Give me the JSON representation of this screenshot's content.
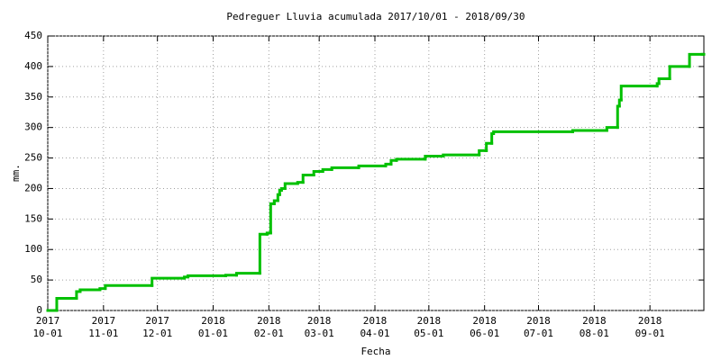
{
  "chart_data": {
    "type": "step",
    "title": "Pedreguer Lluvia acumulada 2017/10/01 - 2018/09/30",
    "xlabel": "Fecha",
    "ylabel": "mm.",
    "color": "#00c000",
    "grid": true,
    "xlim": [
      "2017-10-01",
      "2018-09-30"
    ],
    "ylim": [
      0,
      450
    ],
    "yticks": [
      0,
      50,
      100,
      150,
      200,
      250,
      300,
      350,
      400,
      450
    ],
    "xticks": [
      {
        "value": "2017-10-01",
        "label": [
          "2017",
          "10-01"
        ]
      },
      {
        "value": "2017-11-01",
        "label": [
          "2017",
          "11-01"
        ]
      },
      {
        "value": "2017-12-01",
        "label": [
          "2017",
          "12-01"
        ]
      },
      {
        "value": "2018-01-01",
        "label": [
          "2018",
          "01-01"
        ]
      },
      {
        "value": "2018-02-01",
        "label": [
          "2018",
          "02-01"
        ]
      },
      {
        "value": "2018-03-01",
        "label": [
          "2018",
          "03-01"
        ]
      },
      {
        "value": "2018-04-01",
        "label": [
          "2018",
          "04-01"
        ]
      },
      {
        "value": "2018-05-01",
        "label": [
          "2018",
          "05-01"
        ]
      },
      {
        "value": "2018-06-01",
        "label": [
          "2018",
          "06-01"
        ]
      },
      {
        "value": "2018-07-01",
        "label": [
          "2018",
          "07-01"
        ]
      },
      {
        "value": "2018-08-01",
        "label": [
          "2018",
          "08-01"
        ]
      },
      {
        "value": "2018-09-01",
        "label": [
          "2018",
          "09-01"
        ]
      }
    ],
    "x": [
      "2017-10-01",
      "2017-10-06",
      "2017-10-17",
      "2017-10-19",
      "2017-10-30",
      "2017-11-02",
      "2017-11-28",
      "2017-12-16",
      "2017-12-18",
      "2018-01-08",
      "2018-01-14",
      "2018-01-27",
      "2018-01-31",
      "2018-02-02",
      "2018-02-04",
      "2018-02-06",
      "2018-02-07",
      "2018-02-08",
      "2018-02-10",
      "2018-02-17",
      "2018-02-20",
      "2018-02-26",
      "2018-03-03",
      "2018-03-08",
      "2018-03-23",
      "2018-04-07",
      "2018-04-10",
      "2018-04-13",
      "2018-04-29",
      "2018-05-09",
      "2018-05-29",
      "2018-06-02",
      "2018-06-05",
      "2018-06-06",
      "2018-07-20",
      "2018-08-08",
      "2018-08-14",
      "2018-08-15",
      "2018-08-16",
      "2018-09-05",
      "2018-09-06",
      "2018-09-12",
      "2018-09-23",
      "2018-09-30"
    ],
    "values": [
      0,
      20,
      31,
      34,
      36,
      41,
      53,
      55,
      57,
      58,
      61,
      125,
      127,
      175,
      180,
      190,
      197,
      200,
      208,
      210,
      222,
      228,
      231,
      234,
      237,
      240,
      246,
      248,
      253,
      255,
      262,
      274,
      290,
      293,
      295,
      300,
      335,
      345,
      368,
      372,
      380,
      400,
      420,
      420
    ]
  }
}
